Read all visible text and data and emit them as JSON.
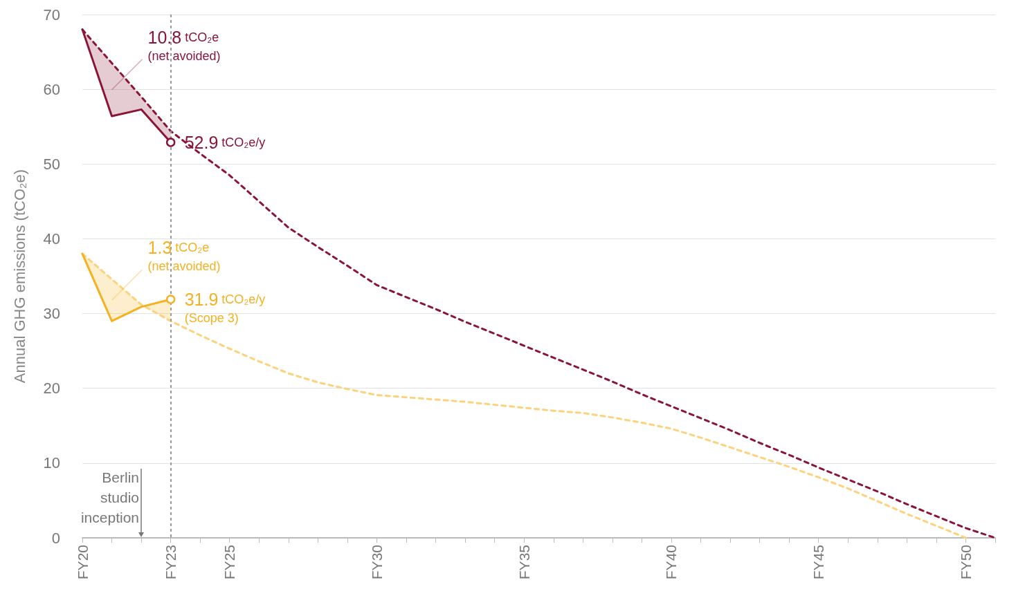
{
  "chart_data": {
    "type": "line",
    "ylabel": "Annual GHG emissions (tCO₂e)",
    "categories": [
      "FY20",
      null,
      null,
      "FY23",
      null,
      "FY25",
      null,
      null,
      null,
      null,
      "FY30",
      null,
      null,
      null,
      null,
      "FY35",
      null,
      null,
      null,
      null,
      "FY40",
      null,
      null,
      null,
      null,
      "FY45",
      null,
      null,
      null,
      null,
      "FY50",
      null
    ],
    "ylim": [
      0,
      70
    ],
    "yticks": [
      0,
      10,
      20,
      30,
      40,
      50,
      60,
      70
    ],
    "grid": "y",
    "series": [
      {
        "color": "#8a1538",
        "line_style": "dashed",
        "marker": "none",
        "values": [
          68,
          63.5,
          59.0,
          54.4,
          51.4,
          48.5,
          45.0,
          41.5,
          38.9,
          36.4,
          33.8,
          32.2,
          30.6,
          28.9,
          27.3,
          25.7,
          24.1,
          22.5,
          20.9,
          19.2,
          17.6,
          16.0,
          14.4,
          12.7,
          11.1,
          9.4,
          7.8,
          6.2,
          4.5,
          2.9,
          1.3,
          0
        ]
      },
      {
        "color": "#8a1538",
        "line_style": "solid",
        "marker": "none",
        "values": [
          68,
          56.4,
          57.3,
          52.9,
          null,
          null,
          null,
          null,
          null,
          null,
          null,
          null,
          null,
          null,
          null,
          null,
          null,
          null,
          null,
          null,
          null,
          null,
          null,
          null,
          null,
          null,
          null,
          null,
          null,
          null,
          null,
          null
        ],
        "lower": [
          68,
          56.4,
          57.3,
          52.9,
          null,
          null,
          null,
          null,
          null,
          null,
          null,
          null,
          null,
          null,
          null,
          null,
          null,
          null,
          null,
          null,
          null,
          null,
          null,
          null,
          null,
          null,
          null,
          null,
          null,
          null,
          null,
          null
        ],
        "upper": [
          68,
          63.5,
          59.0,
          54.4,
          null,
          null,
          null,
          null,
          null,
          null,
          null,
          null,
          null,
          null,
          null,
          null,
          null,
          null,
          null,
          null,
          null,
          null,
          null,
          null,
          null,
          null,
          null,
          null,
          null,
          null,
          null,
          null
        ]
      },
      {
        "color": "#fcd27d",
        "line_style": "dashed",
        "marker": "none",
        "values": [
          38,
          34.6,
          31.2,
          29.0,
          27.1,
          25.3,
          23.6,
          22.0,
          20.8,
          19.9,
          19.1,
          18.8,
          18.5,
          18.2,
          17.8,
          17.4,
          17.0,
          16.7,
          16.1,
          15.4,
          14.6,
          13.4,
          12.1,
          10.8,
          9.5,
          8.1,
          6.6,
          4.9,
          3.2,
          1.6,
          0,
          null
        ]
      },
      {
        "color": "#f5b120",
        "line_style": "solid",
        "marker": "none",
        "values": [
          38,
          29.0,
          30.9,
          31.9,
          null,
          null,
          null,
          null,
          null,
          null,
          null,
          null,
          null,
          null,
          null,
          null,
          null,
          null,
          null,
          null,
          null,
          null,
          null,
          null,
          null,
          null,
          null,
          null,
          null,
          null,
          null,
          null
        ],
        "lower": [
          38,
          29.0,
          30.9,
          31.9,
          null,
          null,
          null,
          null,
          null,
          null,
          null,
          null,
          null,
          null,
          null,
          null,
          null,
          null,
          null,
          null,
          null,
          null,
          null,
          null,
          null,
          null,
          null,
          null,
          null,
          null,
          null,
          null
        ],
        "upper": [
          38,
          34.6,
          31.2,
          29.0,
          null,
          null,
          null,
          null,
          null,
          null,
          null,
          null,
          null,
          null,
          null,
          null,
          null,
          null,
          null,
          null,
          null,
          null,
          null,
          null,
          null,
          null,
          null,
          null,
          null,
          null,
          null,
          null
        ]
      },
      {
        "type": "scatter",
        "color": "#8a1538",
        "marker": "circle",
        "x": [
          "FY23"
        ],
        "values": [
          52.9
        ]
      },
      {
        "type": "scatter",
        "color": "#f5b120",
        "marker": "circle",
        "x": [
          "FY23"
        ],
        "values": [
          31.9
        ]
      }
    ],
    "ref_lines": [
      {
        "axis": "x",
        "value": "FY23",
        "color": "#999999",
        "line_style": "dotted"
      }
    ],
    "annotations": [
      "10.8 tCO₂e\n(net avoided)",
      "1.3 tCO₂e\n(net avoided)",
      "Berlin\nstudio\ninception",
      {
        "text": "52.9 tCO₂e/y",
        "x": "FY23",
        "y": 52.9
      },
      {
        "text": "31.9 tCO₂e/y\n(Scope 3)",
        "x": "FY23",
        "y": 31.9
      }
    ]
  }
}
